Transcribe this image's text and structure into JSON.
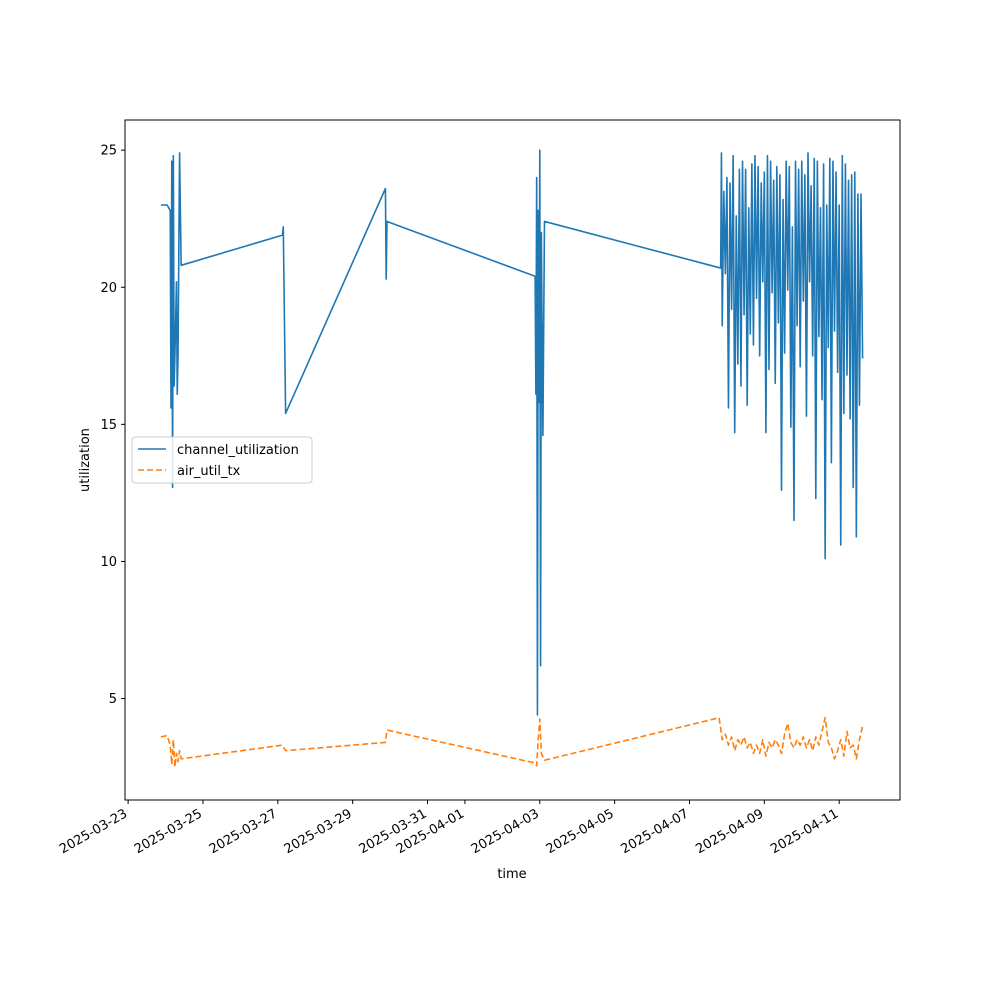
{
  "chart_data": {
    "type": "line",
    "title": "",
    "xlabel": "time",
    "ylabel": "utilization",
    "x_axis_kind": "date",
    "xlim": [
      "2025-03-22T22:00",
      "2025-04-12T15:00"
    ],
    "ylim": [
      1.3,
      26.1
    ],
    "x_ticks": [
      "2025-03-23",
      "2025-03-25",
      "2025-03-27",
      "2025-03-29",
      "2025-03-31",
      "2025-04-01",
      "2025-04-03",
      "2025-04-05",
      "2025-04-07",
      "2025-04-09",
      "2025-04-11"
    ],
    "y_ticks": [
      5,
      10,
      15,
      20,
      25
    ],
    "grid": false,
    "legend_position": "center-left",
    "series": [
      {
        "name": "channel_utilization",
        "color": "#1f77b4",
        "line_style": "solid",
        "points": [
          [
            "2025-03-23T21:00",
            23.0
          ],
          [
            "2025-03-24T01:00",
            23.0
          ],
          [
            "2025-03-24T03:00",
            22.8
          ],
          [
            "2025-03-24T03:30",
            15.6
          ],
          [
            "2025-03-24T04:00",
            24.6
          ],
          [
            "2025-03-24T04:30",
            12.7
          ],
          [
            "2025-03-24T05:00",
            24.8
          ],
          [
            "2025-03-24T05:30",
            16.4
          ],
          [
            "2025-03-24T06:00",
            17.5
          ],
          [
            "2025-03-24T07:00",
            20.2
          ],
          [
            "2025-03-24T07:30",
            16.1
          ],
          [
            "2025-03-24T08:00",
            17.5
          ],
          [
            "2025-03-24T09:00",
            24.9
          ],
          [
            "2025-03-24T10:00",
            20.8
          ],
          [
            "2025-03-27T03:00",
            21.9
          ],
          [
            "2025-03-27T03:30",
            22.2
          ],
          [
            "2025-03-27T05:00",
            15.4
          ],
          [
            "2025-03-29T21:00",
            23.6
          ],
          [
            "2025-03-29T21:30",
            20.3
          ],
          [
            "2025-03-29T22:00",
            22.4
          ],
          [
            "2025-04-02T21:00",
            20.4
          ],
          [
            "2025-04-02T21:30",
            16.1
          ],
          [
            "2025-04-02T22:00",
            24.0
          ],
          [
            "2025-04-02T22:30",
            4.4
          ],
          [
            "2025-04-02T23:00",
            22.8
          ],
          [
            "2025-04-02T23:30",
            15.8
          ],
          [
            "2025-04-03T00:00",
            25.0
          ],
          [
            "2025-04-03T00:30",
            6.2
          ],
          [
            "2025-04-03T01:00",
            22.0
          ],
          [
            "2025-04-03T02:00",
            14.6
          ],
          [
            "2025-04-03T03:00",
            22.4
          ],
          [
            "2025-04-07T20:00",
            20.7
          ],
          [
            "2025-04-07T20:30",
            24.9
          ],
          [
            "2025-04-07T21:00",
            18.6
          ],
          [
            "2025-04-07T22:00",
            23.5
          ],
          [
            "2025-04-07T23:00",
            20.5
          ],
          [
            "2025-04-08T00:00",
            24.0
          ],
          [
            "2025-04-08T01:00",
            15.6
          ],
          [
            "2025-04-08T02:00",
            23.8
          ],
          [
            "2025-04-08T03:00",
            19.2
          ],
          [
            "2025-04-08T04:00",
            24.8
          ],
          [
            "2025-04-08T05:00",
            14.7
          ],
          [
            "2025-04-08T06:00",
            22.6
          ],
          [
            "2025-04-08T07:00",
            17.2
          ],
          [
            "2025-04-08T08:00",
            24.3
          ],
          [
            "2025-04-08T09:00",
            16.4
          ],
          [
            "2025-04-08T10:00",
            24.6
          ],
          [
            "2025-04-08T11:00",
            19.0
          ],
          [
            "2025-04-08T12:00",
            24.3
          ],
          [
            "2025-04-08T13:00",
            15.7
          ],
          [
            "2025-04-08T14:00",
            22.9
          ],
          [
            "2025-04-08T15:00",
            18.3
          ],
          [
            "2025-04-08T16:00",
            24.5
          ],
          [
            "2025-04-08T17:00",
            17.9
          ],
          [
            "2025-04-08T18:00",
            24.8
          ],
          [
            "2025-04-08T19:00",
            19.6
          ],
          [
            "2025-04-08T20:00",
            24.4
          ],
          [
            "2025-04-08T21:00",
            17.5
          ],
          [
            "2025-04-08T22:00",
            23.8
          ],
          [
            "2025-04-08T23:00",
            20.2
          ],
          [
            "2025-04-09T00:00",
            24.2
          ],
          [
            "2025-04-09T01:00",
            14.7
          ],
          [
            "2025-04-09T02:00",
            24.8
          ],
          [
            "2025-04-09T03:00",
            17.0
          ],
          [
            "2025-04-09T04:00",
            24.6
          ],
          [
            "2025-04-09T05:00",
            19.8
          ],
          [
            "2025-04-09T06:00",
            23.9
          ],
          [
            "2025-04-09T07:00",
            16.5
          ],
          [
            "2025-04-09T08:00",
            24.4
          ],
          [
            "2025-04-09T09:00",
            18.7
          ],
          [
            "2025-04-09T10:00",
            24.1
          ],
          [
            "2025-04-09T11:00",
            12.6
          ],
          [
            "2025-04-09T12:00",
            23.2
          ],
          [
            "2025-04-09T13:00",
            17.6
          ],
          [
            "2025-04-09T14:00",
            24.6
          ],
          [
            "2025-04-09T15:00",
            19.9
          ],
          [
            "2025-04-09T16:00",
            24.4
          ],
          [
            "2025-04-09T17:00",
            14.9
          ],
          [
            "2025-04-09T18:00",
            22.2
          ],
          [
            "2025-04-09T19:00",
            11.5
          ],
          [
            "2025-04-09T20:00",
            24.6
          ],
          [
            "2025-04-09T21:00",
            18.6
          ],
          [
            "2025-04-09T22:00",
            24.3
          ],
          [
            "2025-04-09T23:00",
            17.1
          ],
          [
            "2025-04-10T00:00",
            24.6
          ],
          [
            "2025-04-10T01:00",
            19.5
          ],
          [
            "2025-04-10T02:00",
            24.1
          ],
          [
            "2025-04-10T03:00",
            15.3
          ],
          [
            "2025-04-10T04:00",
            24.9
          ],
          [
            "2025-04-10T05:00",
            20.2
          ],
          [
            "2025-04-10T06:00",
            23.7
          ],
          [
            "2025-04-10T07:00",
            17.5
          ],
          [
            "2025-04-10T08:00",
            24.7
          ],
          [
            "2025-04-10T09:00",
            12.3
          ],
          [
            "2025-04-10T10:00",
            24.6
          ],
          [
            "2025-04-10T11:00",
            18.2
          ],
          [
            "2025-04-10T12:00",
            22.9
          ],
          [
            "2025-04-10T13:00",
            15.9
          ],
          [
            "2025-04-10T14:00",
            24.5
          ],
          [
            "2025-04-10T15:00",
            10.1
          ],
          [
            "2025-04-10T16:00",
            23.0
          ],
          [
            "2025-04-10T17:00",
            17.8
          ],
          [
            "2025-04-10T18:00",
            24.7
          ],
          [
            "2025-04-10T19:00",
            13.6
          ],
          [
            "2025-04-10T20:00",
            24.6
          ],
          [
            "2025-04-10T21:00",
            18.4
          ],
          [
            "2025-04-10T22:00",
            24.2
          ],
          [
            "2025-04-10T23:00",
            16.9
          ],
          [
            "2025-04-11T00:00",
            23.0
          ],
          [
            "2025-04-11T01:00",
            10.6
          ],
          [
            "2025-04-11T02:00",
            24.8
          ],
          [
            "2025-04-11T03:00",
            15.4
          ],
          [
            "2025-04-11T04:00",
            24.5
          ],
          [
            "2025-04-11T05:00",
            16.8
          ],
          [
            "2025-04-11T06:00",
            23.9
          ],
          [
            "2025-04-11T07:00",
            15.2
          ],
          [
            "2025-04-11T08:00",
            24.1
          ],
          [
            "2025-04-11T09:00",
            12.7
          ],
          [
            "2025-04-11T10:00",
            24.2
          ],
          [
            "2025-04-11T11:00",
            10.9
          ],
          [
            "2025-04-11T12:00",
            23.4
          ],
          [
            "2025-04-11T13:00",
            15.7
          ],
          [
            "2025-04-11T14:00",
            23.4
          ],
          [
            "2025-04-11T15:00",
            17.4
          ]
        ]
      },
      {
        "name": "air_util_tx",
        "color": "#ff7f0e",
        "line_style": "dashed",
        "points": [
          [
            "2025-03-23T21:00",
            3.6
          ],
          [
            "2025-03-24T01:00",
            3.65
          ],
          [
            "2025-03-24T03:00",
            3.3
          ],
          [
            "2025-03-24T04:00",
            2.6
          ],
          [
            "2025-03-24T05:00",
            3.5
          ],
          [
            "2025-03-24T06:00",
            2.5
          ],
          [
            "2025-03-24T07:00",
            3.0
          ],
          [
            "2025-03-24T08:00",
            2.7
          ],
          [
            "2025-03-24T09:00",
            3.1
          ],
          [
            "2025-03-24T10:00",
            2.8
          ],
          [
            "2025-03-27T03:00",
            3.3
          ],
          [
            "2025-03-27T05:00",
            3.1
          ],
          [
            "2025-03-29T21:00",
            3.4
          ],
          [
            "2025-03-29T22:00",
            3.85
          ],
          [
            "2025-04-02T21:00",
            2.65
          ],
          [
            "2025-04-02T22:00",
            2.55
          ],
          [
            "2025-04-02T23:00",
            3.5
          ],
          [
            "2025-04-03T00:00",
            4.25
          ],
          [
            "2025-04-03T01:00",
            3.0
          ],
          [
            "2025-04-03T03:00",
            2.75
          ],
          [
            "2025-04-07T19:00",
            4.3
          ],
          [
            "2025-04-07T21:00",
            3.5
          ],
          [
            "2025-04-07T23:00",
            3.7
          ],
          [
            "2025-04-08T01:00",
            3.3
          ],
          [
            "2025-04-08T03:00",
            3.6
          ],
          [
            "2025-04-08T05:00",
            3.1
          ],
          [
            "2025-04-08T07:00",
            3.5
          ],
          [
            "2025-04-08T09:00",
            3.3
          ],
          [
            "2025-04-08T11:00",
            3.6
          ],
          [
            "2025-04-08T13:00",
            3.2
          ],
          [
            "2025-04-08T15:00",
            3.4
          ],
          [
            "2025-04-08T17:00",
            3.0
          ],
          [
            "2025-04-08T19:00",
            3.3
          ],
          [
            "2025-04-08T21:00",
            3.0
          ],
          [
            "2025-04-08T23:00",
            3.5
          ],
          [
            "2025-04-09T01:00",
            2.9
          ],
          [
            "2025-04-09T03:00",
            3.4
          ],
          [
            "2025-04-09T05:00",
            3.2
          ],
          [
            "2025-04-09T07:00",
            3.5
          ],
          [
            "2025-04-09T09:00",
            3.3
          ],
          [
            "2025-04-09T11:00",
            3.0
          ],
          [
            "2025-04-09T13:00",
            3.7
          ],
          [
            "2025-04-09T15:00",
            4.1
          ],
          [
            "2025-04-09T17:00",
            3.4
          ],
          [
            "2025-04-09T19:00",
            3.2
          ],
          [
            "2025-04-09T21:00",
            3.5
          ],
          [
            "2025-04-09T23:00",
            3.3
          ],
          [
            "2025-04-10T01:00",
            3.6
          ],
          [
            "2025-04-10T03:00",
            3.2
          ],
          [
            "2025-04-10T05:00",
            3.5
          ],
          [
            "2025-04-10T07:00",
            3.1
          ],
          [
            "2025-04-10T09:00",
            3.6
          ],
          [
            "2025-04-10T11:00",
            3.3
          ],
          [
            "2025-04-10T13:00",
            3.8
          ],
          [
            "2025-04-10T15:00",
            4.3
          ],
          [
            "2025-04-10T17:00",
            3.4
          ],
          [
            "2025-04-10T19:00",
            3.2
          ],
          [
            "2025-04-10T21:00",
            2.8
          ],
          [
            "2025-04-10T23:00",
            3.1
          ],
          [
            "2025-04-11T01:00",
            3.5
          ],
          [
            "2025-04-11T03:00",
            2.9
          ],
          [
            "2025-04-11T05:00",
            3.8
          ],
          [
            "2025-04-11T07:00",
            3.2
          ],
          [
            "2025-04-11T09:00",
            3.3
          ],
          [
            "2025-04-11T11:00",
            2.8
          ],
          [
            "2025-04-11T13:00",
            3.5
          ],
          [
            "2025-04-11T15:00",
            4.0
          ]
        ]
      }
    ]
  }
}
